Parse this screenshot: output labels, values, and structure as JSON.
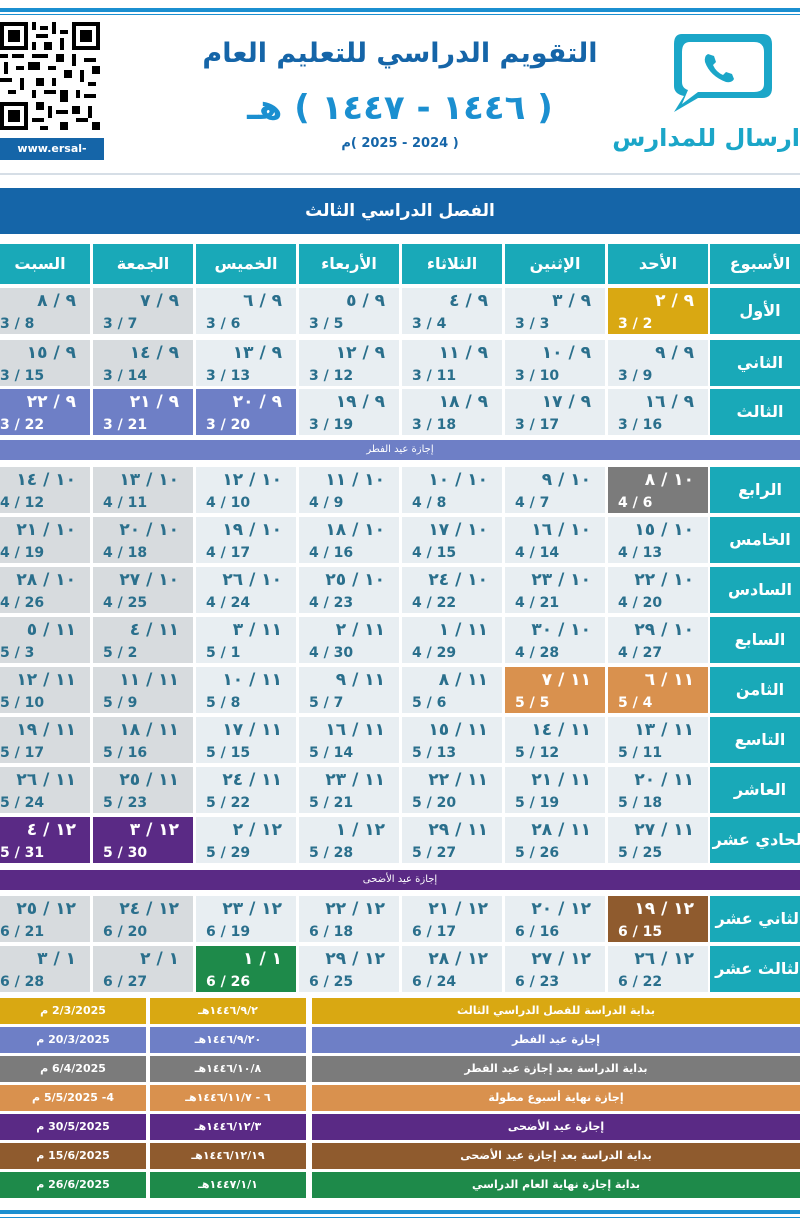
{
  "header": {
    "title": "التقويم الدراسي للتعليم العام",
    "year_hijri": "( ١٤٤٦ - ١٤٤٧ ) هـ",
    "year_gregorian": "( 2024 - 2025 )م",
    "logo_text": "ارسال للمدارس",
    "website": "www.ersal-m.com"
  },
  "term_title": "الفصل الدراسي الثالث",
  "days_header": [
    "الأسبوع",
    "الأحد",
    "الإثنين",
    "الثلاثاء",
    "الأربعاء",
    "الخميس",
    "الجمعة",
    "السبت"
  ],
  "weeks": [
    {
      "name": "الأول",
      "days": [
        {
          "h": "٩ / ٢",
          "m": "3 / 2",
          "c": "gold"
        },
        {
          "h": "٩ / ٣",
          "m": "3 / 3"
        },
        {
          "h": "٩ / ٤",
          "m": "3 / 4"
        },
        {
          "h": "٩ / ٥",
          "m": "3 / 5"
        },
        {
          "h": "٩ / ٦",
          "m": "3 / 6"
        },
        {
          "h": "٩ / ٧",
          "m": "3 / 7",
          "c": "grey2"
        },
        {
          "h": "٩ / ٨",
          "m": "3 / 8",
          "c": "grey2"
        }
      ]
    },
    {
      "name": "الثاني",
      "days": [
        {
          "h": "٩ / ٩",
          "m": "3 / 9"
        },
        {
          "h": "٩ / ١٠",
          "m": "3 / 10"
        },
        {
          "h": "٩ / ١١",
          "m": "3 / 11"
        },
        {
          "h": "٩ / ١٢",
          "m": "3 / 12"
        },
        {
          "h": "٩ / ١٣",
          "m": "3 / 13"
        },
        {
          "h": "٩ / ١٤",
          "m": "3 / 14",
          "c": "grey2"
        },
        {
          "h": "٩ / ١٥",
          "m": "3 / 15",
          "c": "grey2"
        }
      ]
    },
    {
      "name": "الثالث",
      "days": [
        {
          "h": "٩ / ١٦",
          "m": "3 / 16"
        },
        {
          "h": "٩ / ١٧",
          "m": "3 / 17"
        },
        {
          "h": "٩ / ١٨",
          "m": "3 / 18"
        },
        {
          "h": "٩ / ١٩",
          "m": "3 / 19"
        },
        {
          "h": "٩ / ٢٠",
          "m": "3 / 20",
          "c": "blue"
        },
        {
          "h": "٩ / ٢١",
          "m": "3 / 21",
          "c": "blue"
        },
        {
          "h": "٩ / ٢٢",
          "m": "3 / 22",
          "c": "blue"
        }
      ]
    },
    {
      "name": "الرابع",
      "days": [
        {
          "h": "١٠ / ٨",
          "m": "4 / 6",
          "c": "gray"
        },
        {
          "h": "١٠ / ٩",
          "m": "4 / 7"
        },
        {
          "h": "١٠ / ١٠",
          "m": "4 / 8"
        },
        {
          "h": "١٠ / ١١",
          "m": "4 / 9"
        },
        {
          "h": "١٠ / ١٢",
          "m": "4 / 10"
        },
        {
          "h": "١٠ / ١٣",
          "m": "4 / 11",
          "c": "grey2"
        },
        {
          "h": "١٠ / ١٤",
          "m": "4 / 12",
          "c": "grey2"
        }
      ]
    },
    {
      "name": "الخامس",
      "days": [
        {
          "h": "١٠ / ١٥",
          "m": "4 / 13"
        },
        {
          "h": "١٠ / ١٦",
          "m": "4 / 14"
        },
        {
          "h": "١٠ / ١٧",
          "m": "4 / 15"
        },
        {
          "h": "١٠ / ١٨",
          "m": "4 / 16"
        },
        {
          "h": "١٠ / ١٩",
          "m": "4 / 17"
        },
        {
          "h": "١٠ / ٢٠",
          "m": "4 / 18",
          "c": "grey2"
        },
        {
          "h": "١٠ / ٢١",
          "m": "4 / 19",
          "c": "grey2"
        }
      ]
    },
    {
      "name": "السادس",
      "days": [
        {
          "h": "١٠ / ٢٢",
          "m": "4 / 20"
        },
        {
          "h": "١٠ / ٢٣",
          "m": "4 / 21"
        },
        {
          "h": "١٠ / ٢٤",
          "m": "4 / 22"
        },
        {
          "h": "١٠ / ٢٥",
          "m": "4 / 23"
        },
        {
          "h": "١٠ / ٢٦",
          "m": "4 / 24"
        },
        {
          "h": "١٠ / ٢٧",
          "m": "4 / 25",
          "c": "grey2"
        },
        {
          "h": "١٠ / ٢٨",
          "m": "4 / 26",
          "c": "grey2"
        }
      ]
    },
    {
      "name": "السابع",
      "days": [
        {
          "h": "١٠ / ٢٩",
          "m": "4 / 27"
        },
        {
          "h": "١٠ / ٣٠",
          "m": "4 / 28"
        },
        {
          "h": "١١ / ١",
          "m": "4 / 29"
        },
        {
          "h": "١١ / ٢",
          "m": "4 / 30"
        },
        {
          "h": "١١ / ٣",
          "m": "5 / 1"
        },
        {
          "h": "١١ / ٤",
          "m": "5 / 2",
          "c": "grey2"
        },
        {
          "h": "١١ / ٥",
          "m": "5 / 3",
          "c": "grey2"
        }
      ]
    },
    {
      "name": "الثامن",
      "days": [
        {
          "h": "١١ / ٦",
          "m": "5 / 4",
          "c": "orange"
        },
        {
          "h": "١١ / ٧",
          "m": "5 / 5",
          "c": "orange"
        },
        {
          "h": "١١ / ٨",
          "m": "5 / 6"
        },
        {
          "h": "١١ / ٩",
          "m": "5 / 7"
        },
        {
          "h": "١١ / ١٠",
          "m": "5 / 8"
        },
        {
          "h": "١١ / ١١",
          "m": "5 / 9",
          "c": "grey2"
        },
        {
          "h": "١١ / ١٢",
          "m": "5 / 10",
          "c": "grey2"
        }
      ]
    },
    {
      "name": "التاسع",
      "days": [
        {
          "h": "١١ / ١٣",
          "m": "5 / 11"
        },
        {
          "h": "١١ / ١٤",
          "m": "5 / 12"
        },
        {
          "h": "١١ / ١٥",
          "m": "5 / 13"
        },
        {
          "h": "١١ / ١٦",
          "m": "5 / 14"
        },
        {
          "h": "١١ / ١٧",
          "m": "5 / 15"
        },
        {
          "h": "١١ / ١٨",
          "m": "5 / 16",
          "c": "grey2"
        },
        {
          "h": "١١ / ١٩",
          "m": "5 / 17",
          "c": "grey2"
        }
      ]
    },
    {
      "name": "العاشر",
      "days": [
        {
          "h": "١١ / ٢٠",
          "m": "5 / 18"
        },
        {
          "h": "١١ / ٢١",
          "m": "5 / 19"
        },
        {
          "h": "١١ / ٢٢",
          "m": "5 / 20"
        },
        {
          "h": "١١ / ٢٣",
          "m": "5 / 21"
        },
        {
          "h": "١١ / ٢٤",
          "m": "5 / 22"
        },
        {
          "h": "١١ / ٢٥",
          "m": "5 / 23",
          "c": "grey2"
        },
        {
          "h": "١١ / ٢٦",
          "m": "5 / 24",
          "c": "grey2"
        }
      ]
    },
    {
      "name": "الحادي عشر",
      "days": [
        {
          "h": "١١ / ٢٧",
          "m": "5 / 25"
        },
        {
          "h": "١١ / ٢٨",
          "m": "5 / 26"
        },
        {
          "h": "١١ / ٢٩",
          "m": "5 / 27"
        },
        {
          "h": "١٢ / ١",
          "m": "5 / 28"
        },
        {
          "h": "١٢ / ٢",
          "m": "5 / 29"
        },
        {
          "h": "١٢ / ٣",
          "m": "5 / 30",
          "c": "purple"
        },
        {
          "h": "١٢ / ٤",
          "m": "5 / 31",
          "c": "purple"
        }
      ]
    },
    {
      "name": "الثاني عشر",
      "days": [
        {
          "h": "١٢ / ١٩",
          "m": "6 / 15",
          "c": "brown"
        },
        {
          "h": "١٢ / ٢٠",
          "m": "6 / 16"
        },
        {
          "h": "١٢ / ٢١",
          "m": "6 / 17"
        },
        {
          "h": "١٢ / ٢٢",
          "m": "6 / 18"
        },
        {
          "h": "١٢ / ٢٣",
          "m": "6 / 19"
        },
        {
          "h": "١٢ / ٢٤",
          "m": "6 / 20",
          "c": "grey2"
        },
        {
          "h": "١٢ / ٢٥",
          "m": "6 / 21",
          "c": "grey2"
        }
      ]
    },
    {
      "name": "الثالث عشر",
      "days": [
        {
          "h": "١٢ / ٢٦",
          "m": "6 / 22"
        },
        {
          "h": "١٢ / ٢٧",
          "m": "6 / 23"
        },
        {
          "h": "١٢ / ٢٨",
          "m": "6 / 24"
        },
        {
          "h": "١٢ / ٢٩",
          "m": "6 / 25"
        },
        {
          "h": "١ / ١",
          "m": "6 / 26",
          "c": "green"
        },
        {
          "h": "١ / ٢",
          "m": "6 / 27",
          "c": "grey2"
        },
        {
          "h": "١ / ٣",
          "m": "6 / 28",
          "c": "grey2"
        }
      ]
    }
  ],
  "holiday_bands": {
    "fitr": "إجازة عيد الفطر",
    "adha": "إجازة عيد الأضحى"
  },
  "legend": [
    {
      "event": "بداية الدراسة للفصل الدراسي الثالث",
      "hijri": "١٤٤٦/٩/٢هـ",
      "gregorian": "2/3/2025 م",
      "color": "#d9a812"
    },
    {
      "event": "إجازة عيد الفطر",
      "hijri": "١٤٤٦/٩/٢٠هـ",
      "gregorian": "20/3/2025 م",
      "color": "#6e7fc6"
    },
    {
      "event": "بداية الدراسة بعد إجازة عيد الفطر",
      "hijri": "١٤٤٦/١٠/٨هـ",
      "gregorian": "6/4/2025 م",
      "color": "#7b7b7b"
    },
    {
      "event": "إجازة نهاية أسبوع مطولة",
      "hijri": "٦ - ١٤٤٦/١١/٧هـ",
      "gregorian": "4- 5/5/2025 م",
      "color": "#d9914e"
    },
    {
      "event": "إجازة عيد الأضحى",
      "hijri": "١٤٤٦/١٢/٣هـ",
      "gregorian": "30/5/2025 م",
      "color": "#5a2a85"
    },
    {
      "event": "بداية الدراسة بعد إجازة عيد الأضحى",
      "hijri": "١٤٤٦/١٢/١٩هـ",
      "gregorian": "15/6/2025 م",
      "color": "#8f5b2e"
    },
    {
      "event": "بداية إجازة نهاية العام الدراسي",
      "hijri": "١٤٤٧/١/١هـ",
      "gregorian": "26/6/2025 م",
      "color": "#1e8a4a"
    }
  ]
}
